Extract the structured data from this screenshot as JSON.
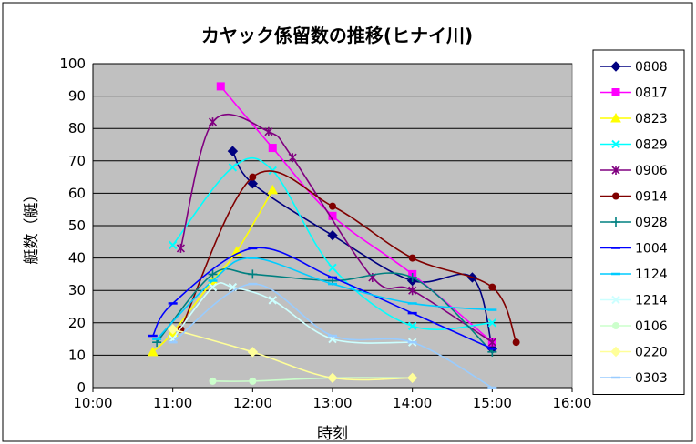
{
  "chart_data": {
    "type": "line",
    "title": "カヤック係留数の推移(ヒナイ川)",
    "xlabel": "時刻",
    "ylabel": "艇数（艇）",
    "x_ticks": [
      "10:00",
      "11:00",
      "12:00",
      "13:00",
      "14:00",
      "15:00",
      "16:00"
    ],
    "xlim": [
      10,
      16
    ],
    "ylim": [
      0,
      100
    ],
    "y_ticks": [
      0,
      10,
      20,
      30,
      40,
      50,
      60,
      70,
      80,
      90,
      100
    ],
    "grid": true,
    "smooth": true,
    "legend_position": "right",
    "series": [
      {
        "name": "0808",
        "color": "#000080",
        "marker": "diamond",
        "points": [
          [
            11.75,
            73
          ],
          [
            12.0,
            63
          ],
          [
            13.0,
            47
          ],
          [
            14.0,
            33
          ],
          [
            14.75,
            34
          ],
          [
            15.0,
            12
          ]
        ]
      },
      {
        "name": "0817",
        "color": "#ff00ff",
        "marker": "square",
        "points": [
          [
            11.6,
            93
          ],
          [
            12.25,
            74
          ],
          [
            13.0,
            53
          ],
          [
            14.0,
            35
          ],
          [
            15.0,
            14
          ]
        ]
      },
      {
        "name": "0823",
        "color": "#ffff00",
        "marker": "triangle",
        "points": [
          [
            10.75,
            11
          ],
          [
            11.0,
            17
          ],
          [
            11.5,
            33
          ],
          [
            11.8,
            42
          ],
          [
            12.25,
            61
          ]
        ]
      },
      {
        "name": "0829",
        "color": "#00ffff",
        "marker": "x",
        "points": [
          [
            11.0,
            44
          ],
          [
            11.75,
            68
          ],
          [
            12.25,
            67
          ],
          [
            13.0,
            37
          ],
          [
            14.0,
            19
          ],
          [
            15.0,
            20
          ]
        ]
      },
      {
        "name": "0906",
        "color": "#800080",
        "marker": "star",
        "points": [
          [
            11.1,
            43
          ],
          [
            11.5,
            82
          ],
          [
            12.2,
            79
          ],
          [
            12.5,
            71
          ],
          [
            13.5,
            34
          ],
          [
            14.0,
            30
          ],
          [
            15.0,
            14
          ]
        ]
      },
      {
        "name": "0914",
        "color": "#800000",
        "marker": "circle",
        "points": [
          [
            11.1,
            18
          ],
          [
            12.0,
            65
          ],
          [
            13.0,
            56
          ],
          [
            14.0,
            40
          ],
          [
            15.0,
            31
          ],
          [
            15.3,
            14
          ]
        ]
      },
      {
        "name": "0928",
        "color": "#008080",
        "marker": "plus",
        "points": [
          [
            10.8,
            14
          ],
          [
            11.5,
            35
          ],
          [
            12.0,
            35
          ],
          [
            13.0,
            33
          ],
          [
            14.0,
            34
          ],
          [
            15.0,
            11
          ]
        ]
      },
      {
        "name": "1004",
        "color": "#0000ff",
        "marker": "dash",
        "points": [
          [
            10.75,
            16
          ],
          [
            11.0,
            26
          ],
          [
            12.0,
            43
          ],
          [
            13.0,
            34
          ],
          [
            14.0,
            23
          ],
          [
            15.0,
            12
          ]
        ]
      },
      {
        "name": "1124",
        "color": "#00ccff",
        "marker": "dash",
        "points": [
          [
            10.8,
            15
          ],
          [
            11.5,
            33
          ],
          [
            12.0,
            40
          ],
          [
            13.0,
            32
          ],
          [
            14.0,
            26
          ],
          [
            15.0,
            24
          ]
        ]
      },
      {
        "name": "1214",
        "color": "#ccffff",
        "marker": "x",
        "points": [
          [
            11.0,
            15
          ],
          [
            11.5,
            31
          ],
          [
            11.75,
            31
          ],
          [
            12.25,
            27
          ],
          [
            13.0,
            15
          ],
          [
            14.0,
            14
          ]
        ]
      },
      {
        "name": "0106",
        "color": "#ccffcc",
        "marker": "circle",
        "points": [
          [
            11.5,
            2
          ],
          [
            12.0,
            2
          ],
          [
            13.0,
            3
          ],
          [
            14.0,
            3
          ]
        ]
      },
      {
        "name": "0220",
        "color": "#ffff99",
        "marker": "diamond",
        "points": [
          [
            11.0,
            18
          ],
          [
            12.0,
            11
          ],
          [
            13.0,
            3
          ],
          [
            14.0,
            3
          ]
        ]
      },
      {
        "name": "0303",
        "color": "#99ccff",
        "marker": "dash",
        "points": [
          [
            11.0,
            14
          ],
          [
            12.0,
            32
          ],
          [
            13.0,
            16
          ],
          [
            14.0,
            14
          ],
          [
            15.0,
            0
          ]
        ]
      }
    ]
  }
}
